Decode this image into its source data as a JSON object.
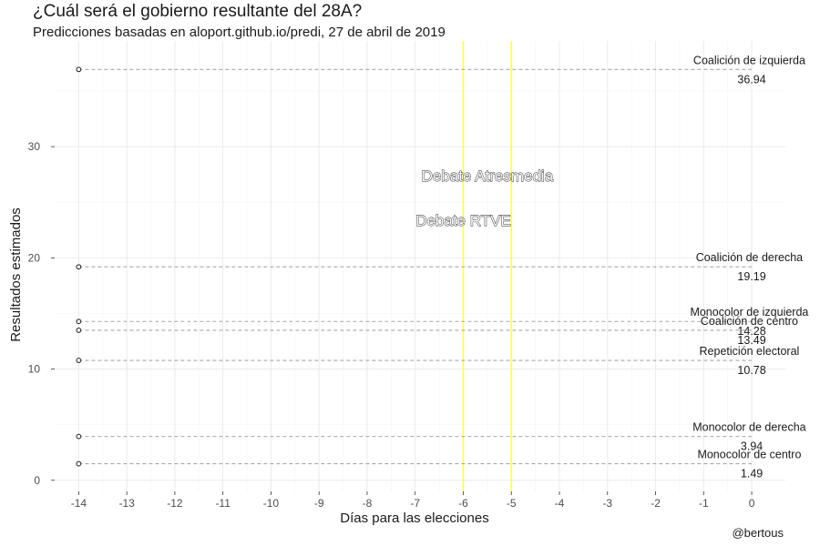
{
  "title": "¿Cuál será el gobierno resultante del 28A?",
  "subtitle": "Predicciones basadas en aloport.github.io/predi, 27 de abril de 2019",
  "caption": "@bertous",
  "chart_data": {
    "type": "scatter",
    "xlabel": "Días para las elecciones",
    "ylabel": "Resultados estimados",
    "xlim": [
      -14.5,
      0.7
    ],
    "ylim": [
      -1,
      39.5
    ],
    "x_ticks": [
      -14,
      -13,
      -12,
      -11,
      -10,
      -9,
      -8,
      -7,
      -6,
      -5,
      -4,
      -3,
      -2,
      -1,
      0
    ],
    "y_ticks": [
      0,
      10,
      20,
      30
    ],
    "grid": true,
    "legend": "none",
    "series": [
      {
        "name": "Coalición de izquierda",
        "x": -14,
        "y": 36.94,
        "final": 36.94,
        "label": "36.94"
      },
      {
        "name": "Coalición de derecha",
        "x": -14,
        "y": 19.19,
        "final": 19.19,
        "label": "19.19"
      },
      {
        "name": "Monocolor de izquierda",
        "x": -14,
        "y": 14.28,
        "final": 14.28,
        "label": "14.28"
      },
      {
        "name": "Coalición de centro",
        "x": -14,
        "y": 13.49,
        "final": 13.49,
        "label": "13.49"
      },
      {
        "name": "Repetición electoral",
        "x": -14,
        "y": 10.78,
        "final": 10.78,
        "label": "10.78"
      },
      {
        "name": "Monocolor de derecha",
        "x": -14,
        "y": 3.94,
        "final": 3.94,
        "label": "3.94"
      },
      {
        "name": "Monocolor de centro",
        "x": -14,
        "y": 1.49,
        "final": 1.49,
        "label": "1.49"
      }
    ],
    "vlines": [
      {
        "x": -6,
        "color": "#ffff33"
      },
      {
        "x": -5,
        "color": "#ffff33"
      }
    ],
    "annotations": [
      {
        "text": "Debate Atresmedia",
        "x": -5.5,
        "y": 26.9
      },
      {
        "text": "Debate RTVE",
        "x": -6,
        "y": 22.9
      }
    ]
  }
}
